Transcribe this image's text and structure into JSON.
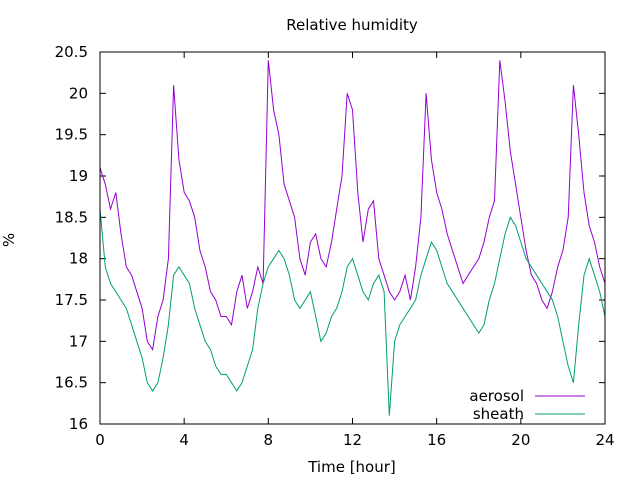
{
  "chart_data": {
    "type": "line",
    "title": "Relative humidity",
    "xlabel": "Time [hour]",
    "ylabel": "%",
    "xlim": [
      0,
      24
    ],
    "ylim": [
      16,
      20.5
    ],
    "x_ticks": [
      0,
      4,
      8,
      12,
      16,
      20,
      24
    ],
    "y_ticks": [
      16,
      16.5,
      17,
      17.5,
      18,
      18.5,
      19,
      19.5,
      20,
      20.5
    ],
    "grid": false,
    "legend_position": "bottom-right",
    "series": [
      {
        "name": "aerosol",
        "color": "#9400d3",
        "x": [
          0,
          0.25,
          0.5,
          0.75,
          1,
          1.25,
          1.5,
          1.75,
          2,
          2.25,
          2.5,
          2.75,
          3,
          3.25,
          3.5,
          3.75,
          4,
          4.25,
          4.5,
          4.75,
          5,
          5.25,
          5.5,
          5.75,
          6,
          6.25,
          6.5,
          6.75,
          7,
          7.25,
          7.5,
          7.75,
          8,
          8.25,
          8.5,
          8.75,
          9,
          9.25,
          9.5,
          9.75,
          10,
          10.25,
          10.5,
          10.75,
          11,
          11.25,
          11.5,
          11.75,
          12,
          12.25,
          12.5,
          12.75,
          13,
          13.25,
          13.5,
          13.75,
          14,
          14.25,
          14.5,
          14.75,
          15,
          15.25,
          15.5,
          15.75,
          16,
          16.25,
          16.5,
          16.75,
          17,
          17.25,
          17.5,
          17.75,
          18,
          18.25,
          18.5,
          18.75,
          19,
          19.25,
          19.5,
          19.75,
          20,
          20.25,
          20.5,
          20.75,
          21,
          21.25,
          21.5,
          21.75,
          22,
          22.25,
          22.5,
          22.75,
          23,
          23.25,
          23.5,
          23.75,
          24
        ],
        "values": [
          19.1,
          18.9,
          18.6,
          18.8,
          18.3,
          17.9,
          17.8,
          17.6,
          17.4,
          17.0,
          16.9,
          17.3,
          17.5,
          18.0,
          20.1,
          19.2,
          18.8,
          18.7,
          18.5,
          18.1,
          17.9,
          17.6,
          17.5,
          17.3,
          17.3,
          17.2,
          17.6,
          17.8,
          17.4,
          17.6,
          17.9,
          17.7,
          20.4,
          19.8,
          19.5,
          18.9,
          18.7,
          18.5,
          18.0,
          17.8,
          18.2,
          18.3,
          18.0,
          17.9,
          18.2,
          18.6,
          19.0,
          20.0,
          19.8,
          18.8,
          18.2,
          18.6,
          18.7,
          18.0,
          17.8,
          17.6,
          17.5,
          17.6,
          17.8,
          17.5,
          17.9,
          18.5,
          20.0,
          19.2,
          18.8,
          18.6,
          18.3,
          18.1,
          17.9,
          17.7,
          17.8,
          17.9,
          18.0,
          18.2,
          18.5,
          18.7,
          20.4,
          19.9,
          19.3,
          18.9,
          18.5,
          18.1,
          17.8,
          17.7,
          17.5,
          17.4,
          17.6,
          17.9,
          18.1,
          18.5,
          20.1,
          19.5,
          18.8,
          18.4,
          18.2,
          17.9,
          17.7
        ]
      },
      {
        "name": "sheath",
        "color": "#009e73",
        "x": [
          0,
          0.25,
          0.5,
          0.75,
          1,
          1.25,
          1.5,
          1.75,
          2,
          2.25,
          2.5,
          2.75,
          3,
          3.25,
          3.5,
          3.75,
          4,
          4.25,
          4.5,
          4.75,
          5,
          5.25,
          5.5,
          5.75,
          6,
          6.25,
          6.5,
          6.75,
          7,
          7.25,
          7.5,
          7.75,
          8,
          8.25,
          8.5,
          8.75,
          9,
          9.25,
          9.5,
          9.75,
          10,
          10.25,
          10.5,
          10.75,
          11,
          11.25,
          11.5,
          11.75,
          12,
          12.25,
          12.5,
          12.75,
          13,
          13.25,
          13.5,
          13.75,
          14,
          14.25,
          14.5,
          14.75,
          15,
          15.25,
          15.5,
          15.75,
          16,
          16.25,
          16.5,
          16.75,
          17,
          17.25,
          17.5,
          17.75,
          18,
          18.25,
          18.5,
          18.75,
          19,
          19.25,
          19.5,
          19.75,
          20,
          20.25,
          20.5,
          20.75,
          21,
          21.25,
          21.5,
          21.75,
          22,
          22.25,
          22.5,
          22.75,
          23,
          23.25,
          23.5,
          23.75,
          24
        ],
        "values": [
          18.6,
          17.9,
          17.7,
          17.6,
          17.5,
          17.4,
          17.2,
          17.0,
          16.8,
          16.5,
          16.4,
          16.5,
          16.8,
          17.2,
          17.8,
          17.9,
          17.8,
          17.7,
          17.4,
          17.2,
          17.0,
          16.9,
          16.7,
          16.6,
          16.6,
          16.5,
          16.4,
          16.5,
          16.7,
          16.9,
          17.4,
          17.7,
          17.9,
          18.0,
          18.1,
          18.0,
          17.8,
          17.5,
          17.4,
          17.5,
          17.6,
          17.3,
          17.0,
          17.1,
          17.3,
          17.4,
          17.6,
          17.9,
          18.0,
          17.8,
          17.6,
          17.5,
          17.7,
          17.8,
          17.6,
          16.1,
          17.0,
          17.2,
          17.3,
          17.4,
          17.5,
          17.8,
          18.0,
          18.2,
          18.1,
          17.9,
          17.7,
          17.6,
          17.5,
          17.4,
          17.3,
          17.2,
          17.1,
          17.2,
          17.5,
          17.7,
          18.0,
          18.3,
          18.5,
          18.4,
          18.2,
          18.0,
          17.9,
          17.8,
          17.7,
          17.6,
          17.5,
          17.3,
          17.0,
          16.7,
          16.5,
          17.2,
          17.8,
          18.0,
          17.8,
          17.6,
          17.3
        ]
      }
    ]
  }
}
